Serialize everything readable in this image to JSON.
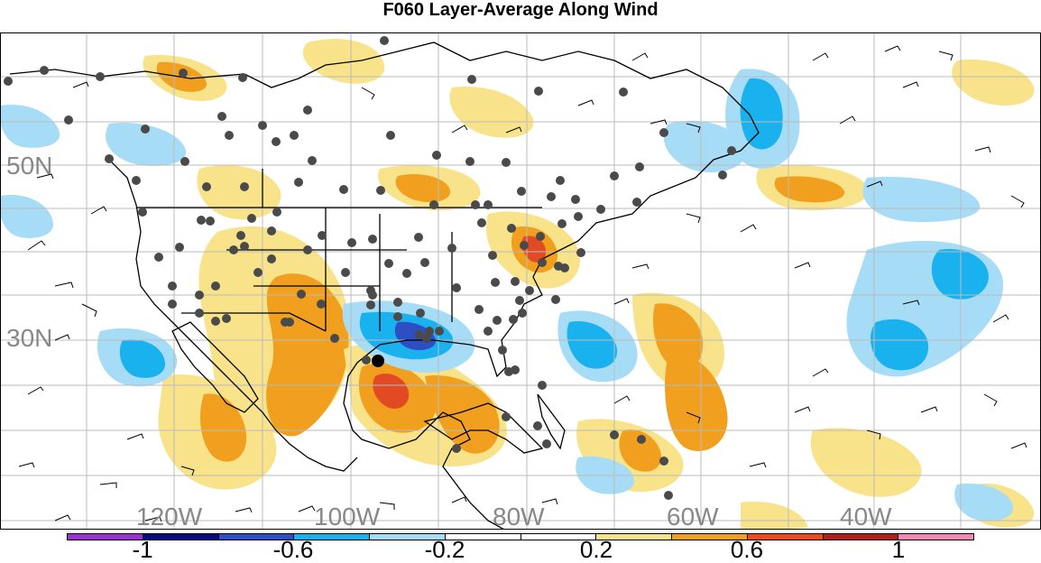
{
  "title": "F060 Layer-Average Along Wind",
  "lat_labels": [
    "50N",
    "30N"
  ],
  "lon_labels": [
    "120W",
    "100W",
    "80W",
    "60W",
    "40W"
  ],
  "colorbar": {
    "colors": [
      "#9933cc",
      "#0a0a80",
      "#2e4fc4",
      "#1ab2ee",
      "#a6dcf5",
      "#ffffff",
      "#ffffff",
      "#f8e38a",
      "#f0a01e",
      "#ee4a1c",
      "#b01e1e",
      "#f488b4"
    ],
    "tick_labels": [
      "-1",
      "-0.6",
      "-0.2",
      "0.2",
      "0.6",
      "1"
    ]
  },
  "legend_colors": {
    "positive_light": "#f8e38a",
    "positive_mid": "#f0a01e",
    "positive_high": "#e24a24",
    "negative_light": "#a6dcf5",
    "negative_mid": "#1ab2ee",
    "negative_high": "#2e4fc4"
  }
}
